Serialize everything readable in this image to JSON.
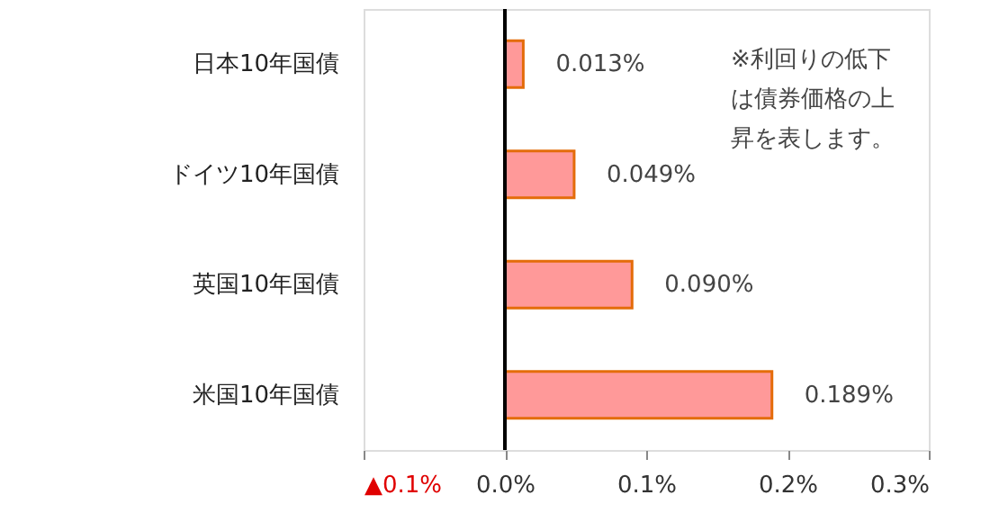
{
  "chart_data": {
    "type": "bar",
    "orientation": "horizontal",
    "categories": [
      "日本10年国債",
      "ドイツ10年国債",
      "英国10年国債",
      "米国10年国債"
    ],
    "values": [
      0.013,
      0.049,
      0.09,
      0.189
    ],
    "color": "#ff9999",
    "value_labels": [
      "0.013%",
      "0.049%",
      "0.090%",
      "0.189%"
    ],
    "xlim": [
      -0.1,
      0.3
    ],
    "xticks": [
      {
        "value": -0.1,
        "label": "▲0.1%"
      },
      {
        "value": 0,
        "label": "0.0%"
      },
      {
        "value": 0.1,
        "label": "0.1%"
      },
      {
        "value": 0.2,
        "label": "0.2%"
      },
      {
        "value": 0.3,
        "label": "0.3%"
      }
    ],
    "ref_lines": [
      {
        "axis": "x",
        "value": 0,
        "label": null,
        "color": "#000000"
      }
    ],
    "annotations": [
      "※利回りの低下は債券価格の上昇を表します。"
    ],
    "grid": false
  }
}
